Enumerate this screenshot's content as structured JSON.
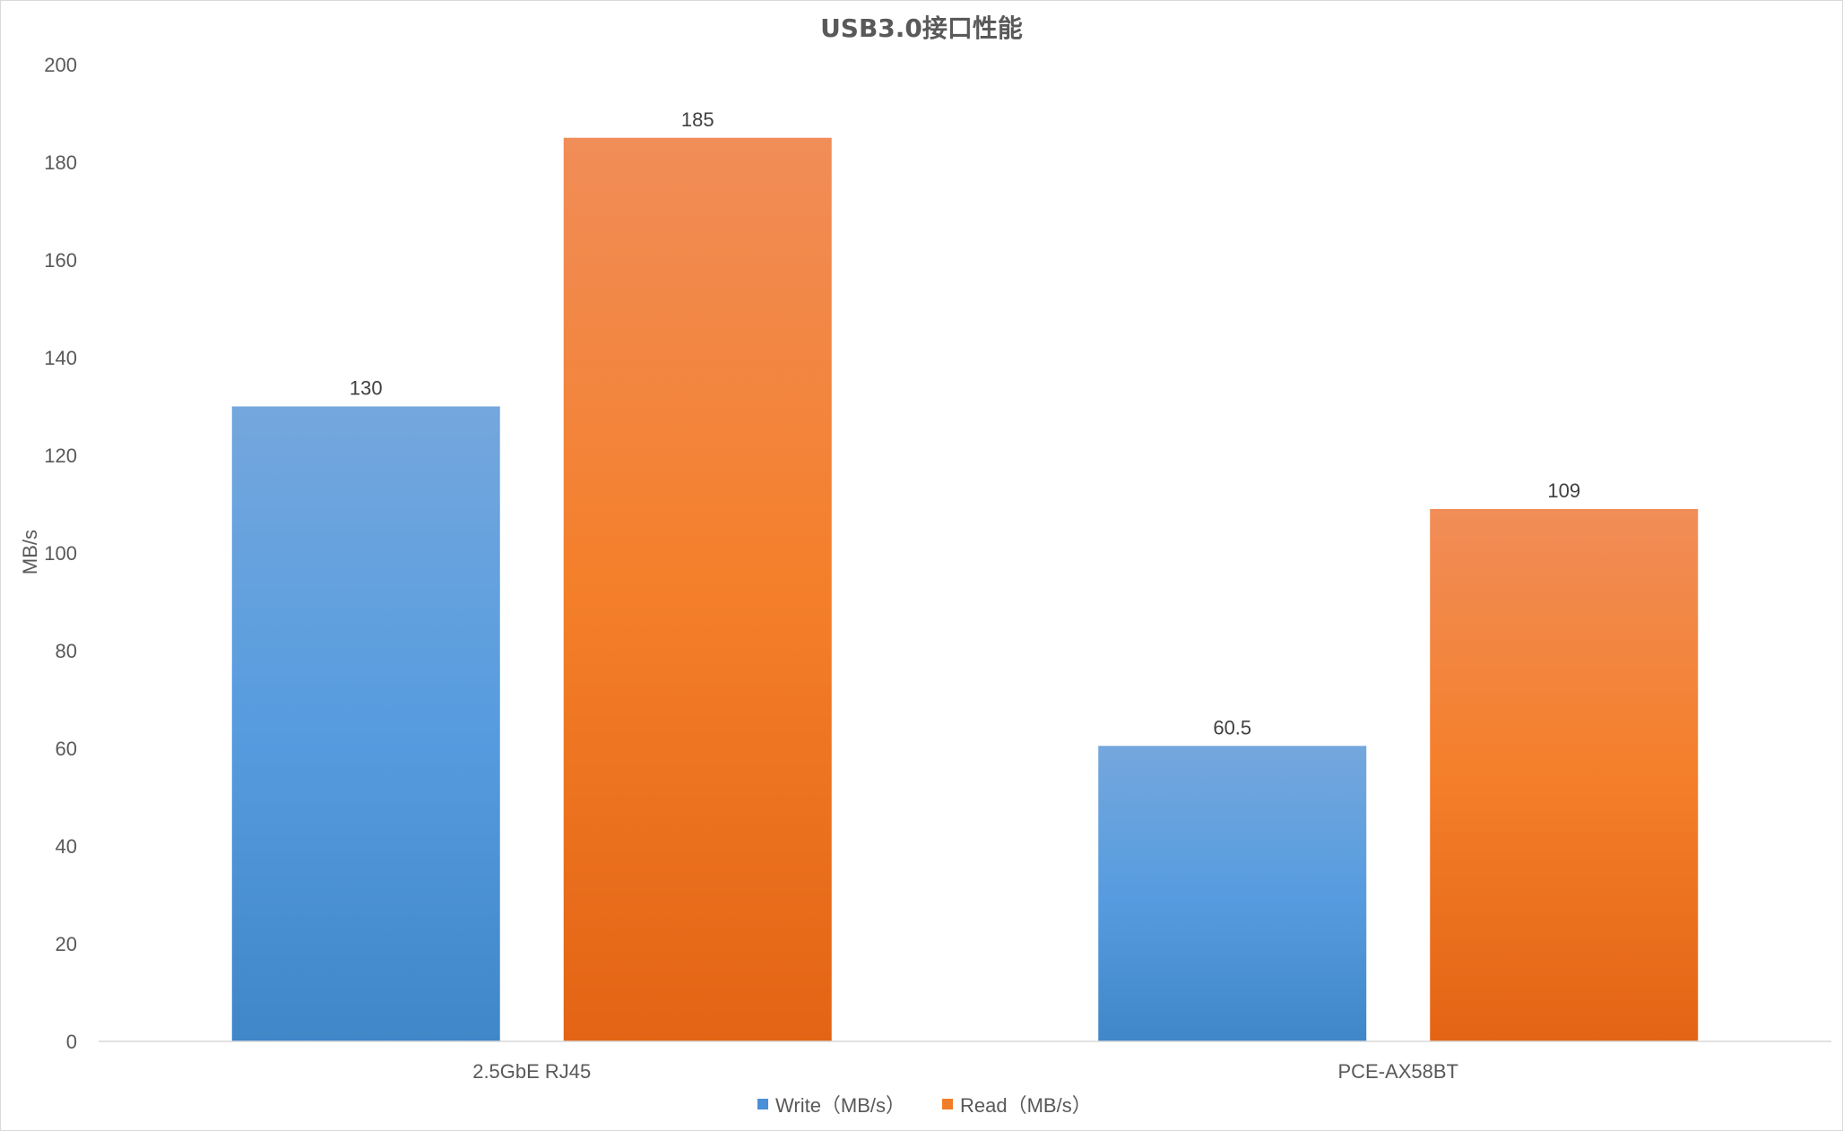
{
  "chart_data": {
    "type": "bar",
    "title": "USB3.0接口性能",
    "xlabel": "",
    "ylabel": "MB/s",
    "ylim": [
      0,
      200
    ],
    "yticks": [
      0,
      20,
      40,
      60,
      80,
      100,
      120,
      140,
      160,
      180,
      200
    ],
    "categories": [
      "2.5GbE RJ45",
      "PCE-AX58BT"
    ],
    "series": [
      {
        "name": "Write（MB/s）",
        "values": [
          130,
          60.5
        ],
        "color": "#4a90d9"
      },
      {
        "name": "Read（MB/s）",
        "values": [
          185,
          109
        ],
        "color": "#f07d28"
      }
    ],
    "legend_position": "bottom",
    "grid": false,
    "data_labels": true
  }
}
